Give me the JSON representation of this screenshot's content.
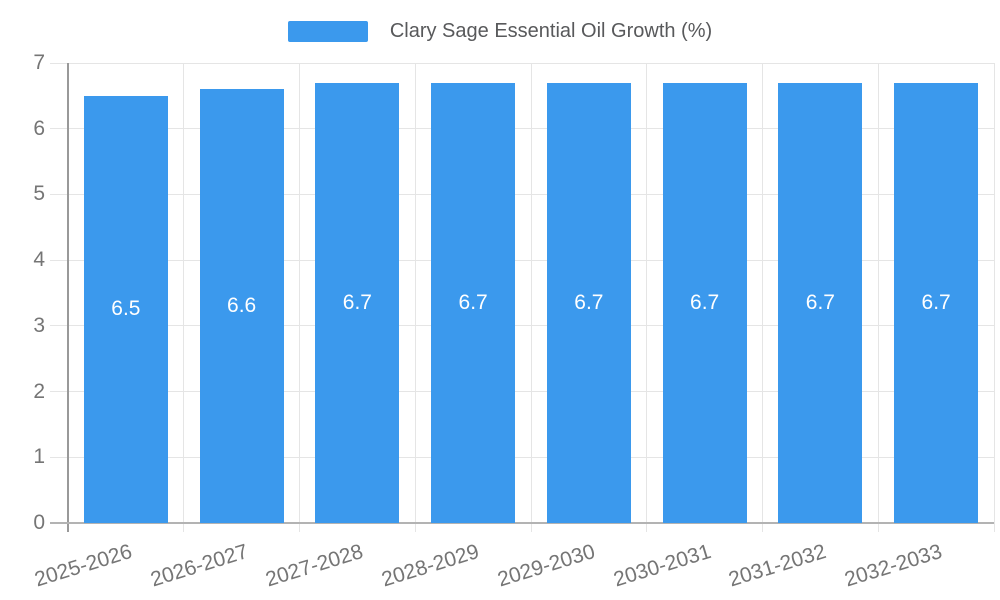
{
  "chart_data": {
    "type": "bar",
    "title": "Clary Sage Essential Oil Growth (%)",
    "legend_entries": [
      "Clary Sage Essential Oil Growth (%)"
    ],
    "legend_position": "top-center",
    "categories": [
      "2025-2026",
      "2026-2027",
      "2027-2028",
      "2028-2029",
      "2029-2030",
      "2030-2031",
      "2031-2032",
      "2032-2033"
    ],
    "values": [
      6.5,
      6.6,
      6.7,
      6.7,
      6.7,
      6.7,
      6.7,
      6.7
    ],
    "bar_labels": [
      "6.5",
      "6.6",
      "6.7",
      "6.7",
      "6.7",
      "6.7",
      "6.7",
      "6.7"
    ],
    "xlabel": "",
    "ylabel": "",
    "ylim": [
      0,
      7
    ],
    "y_ticks": [
      0,
      1,
      2,
      3,
      4,
      5,
      6,
      7
    ],
    "grid": true,
    "colors": {
      "bar": "#3b99ed",
      "bar_label_text": "#ffffff",
      "axis_text": "#757575",
      "legend_text": "#58595b",
      "gridline": "#e5e5e5",
      "axis_line": "#999999",
      "baseline": "#b3b3b3"
    }
  }
}
